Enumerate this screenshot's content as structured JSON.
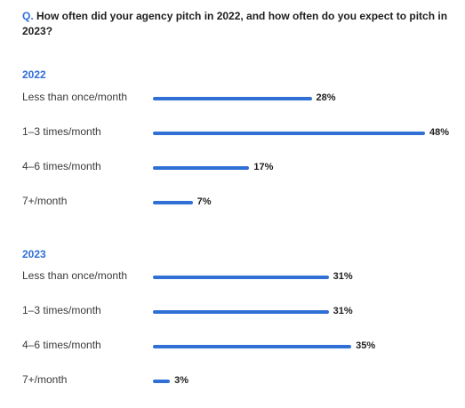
{
  "question": {
    "prefix": "Q.",
    "text": "How often did your agency pitch in 2022, and how often do you expect to pitch in 2023?"
  },
  "colors": {
    "accent": "#2f6fd6"
  },
  "chart_data": [
    {
      "type": "bar",
      "orientation": "horizontal",
      "title": "2022",
      "categories": [
        "Less than once/month",
        "1–3 times/month",
        "4–6 times/month",
        "7+/month"
      ],
      "values": [
        28,
        48,
        17,
        7
      ],
      "value_labels": [
        "28%",
        "48%",
        "17%",
        "7%"
      ],
      "unit": "%",
      "xlim": [
        0,
        48
      ]
    },
    {
      "type": "bar",
      "orientation": "horizontal",
      "title": "2023",
      "categories": [
        "Less than once/month",
        "1–3 times/month",
        "4–6 times/month",
        "7+/month"
      ],
      "values": [
        31,
        31,
        35,
        3
      ],
      "value_labels": [
        "31%",
        "31%",
        "35%",
        "3%"
      ],
      "unit": "%",
      "xlim": [
        0,
        48
      ]
    }
  ]
}
